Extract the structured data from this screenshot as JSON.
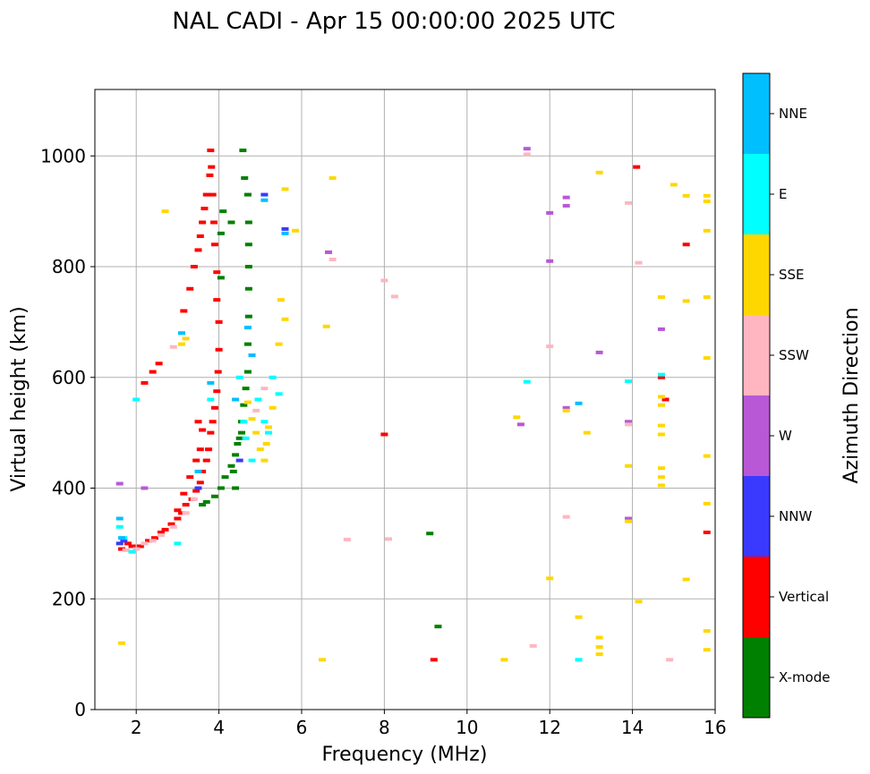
{
  "chart_data": {
    "type": "scatter",
    "title": "NAL CADI - Apr 15 00:00:00 2025 UTC",
    "xlabel": "Frequency (MHz)",
    "ylabel": "Virtual height (km)",
    "xlim": [
      1,
      16
    ],
    "ylim": [
      0,
      1120
    ],
    "xticks": [
      2,
      4,
      6,
      8,
      10,
      12,
      14,
      16
    ],
    "yticks": [
      0,
      200,
      400,
      600,
      800,
      1000
    ],
    "grid": true,
    "colorbar": {
      "label": "Azimuth Direction",
      "position": "right",
      "categories": [
        {
          "name": "X-mode",
          "color": "#008000"
        },
        {
          "name": "Vertical",
          "color": "#ff0000"
        },
        {
          "name": "NNW",
          "color": "#3a3aff"
        },
        {
          "name": "W",
          "color": "#b858d6"
        },
        {
          "name": "SSW",
          "color": "#ffb6c1"
        },
        {
          "name": "SSE",
          "color": "#ffd700"
        },
        {
          "name": "E",
          "color": "#00ffff"
        },
        {
          "name": "NNE",
          "color": "#00bfff"
        }
      ]
    },
    "series": [
      {
        "name": "Vertical",
        "points": [
          [
            1.65,
            290
          ],
          [
            1.8,
            300
          ],
          [
            1.9,
            295
          ],
          [
            2.1,
            295
          ],
          [
            2.3,
            305
          ],
          [
            2.45,
            310
          ],
          [
            2.6,
            320
          ],
          [
            2.7,
            325
          ],
          [
            2.85,
            335
          ],
          [
            3.0,
            345
          ],
          [
            3.1,
            355
          ],
          [
            3.2,
            370
          ],
          [
            3.35,
            380
          ],
          [
            3.45,
            395
          ],
          [
            3.55,
            410
          ],
          [
            3.6,
            430
          ],
          [
            3.7,
            450
          ],
          [
            3.75,
            470
          ],
          [
            3.8,
            500
          ],
          [
            3.85,
            520
          ],
          [
            3.9,
            545
          ],
          [
            3.95,
            575
          ],
          [
            3.98,
            610
          ],
          [
            4.0,
            650
          ],
          [
            4.0,
            700
          ],
          [
            3.95,
            740
          ],
          [
            3.95,
            790
          ],
          [
            3.9,
            840
          ],
          [
            3.88,
            880
          ],
          [
            3.85,
            930
          ],
          [
            3.82,
            980
          ],
          [
            3.8,
            1010
          ],
          [
            3.0,
            360
          ],
          [
            3.15,
            390
          ],
          [
            3.3,
            420
          ],
          [
            3.45,
            450
          ],
          [
            3.55,
            470
          ],
          [
            3.6,
            505
          ],
          [
            3.5,
            520
          ],
          [
            3.15,
            720
          ],
          [
            3.3,
            760
          ],
          [
            3.4,
            800
          ],
          [
            3.5,
            830
          ],
          [
            3.55,
            855
          ],
          [
            3.6,
            880
          ],
          [
            3.65,
            905
          ],
          [
            3.7,
            930
          ],
          [
            3.78,
            965
          ],
          [
            2.2,
            590
          ],
          [
            2.4,
            610
          ],
          [
            2.55,
            625
          ],
          [
            8.0,
            497
          ],
          [
            9.2,
            90
          ],
          [
            14.1,
            980
          ],
          [
            14.7,
            600
          ],
          [
            14.8,
            560
          ],
          [
            15.3,
            840
          ],
          [
            15.8,
            320
          ]
        ]
      },
      {
        "name": "X-mode",
        "points": [
          [
            3.6,
            370
          ],
          [
            3.7,
            375
          ],
          [
            3.9,
            385
          ],
          [
            4.05,
            400
          ],
          [
            4.15,
            420
          ],
          [
            4.3,
            440
          ],
          [
            4.4,
            460
          ],
          [
            4.5,
            490
          ],
          [
            4.55,
            520
          ],
          [
            4.6,
            550
          ],
          [
            4.65,
            580
          ],
          [
            4.7,
            610
          ],
          [
            4.7,
            660
          ],
          [
            4.72,
            710
          ],
          [
            4.72,
            760
          ],
          [
            4.72,
            800
          ],
          [
            4.72,
            840
          ],
          [
            4.72,
            880
          ],
          [
            4.7,
            930
          ],
          [
            4.62,
            960
          ],
          [
            4.58,
            1010
          ],
          [
            4.4,
            400
          ],
          [
            4.35,
            430
          ],
          [
            4.45,
            480
          ],
          [
            4.55,
            500
          ],
          [
            4.05,
            780
          ],
          [
            4.05,
            860
          ],
          [
            4.1,
            900
          ],
          [
            4.3,
            880
          ],
          [
            9.1,
            318
          ],
          [
            9.3,
            150
          ]
        ]
      },
      {
        "name": "NNW",
        "points": [
          [
            1.6,
            300
          ],
          [
            1.7,
            305
          ],
          [
            3.5,
            400
          ],
          [
            4.5,
            450
          ],
          [
            5.6,
            868
          ],
          [
            5.1,
            930
          ]
        ]
      },
      {
        "name": "W",
        "points": [
          [
            1.6,
            408
          ],
          [
            2.2,
            400
          ],
          [
            6.65,
            826
          ],
          [
            11.45,
            1013
          ],
          [
            11.3,
            515
          ],
          [
            12.0,
            897
          ],
          [
            12.0,
            810
          ],
          [
            12.4,
            925
          ],
          [
            12.4,
            910
          ],
          [
            12.4,
            545
          ],
          [
            13.2,
            645
          ],
          [
            13.9,
            520
          ],
          [
            14.7,
            687
          ],
          [
            13.9,
            345
          ]
        ]
      },
      {
        "name": "SSW",
        "points": [
          [
            1.75,
            288
          ],
          [
            1.9,
            285
          ],
          [
            2.0,
            290
          ],
          [
            2.2,
            300
          ],
          [
            2.4,
            305
          ],
          [
            2.6,
            315
          ],
          [
            2.9,
            330
          ],
          [
            3.2,
            355
          ],
          [
            3.4,
            380
          ],
          [
            2.9,
            655
          ],
          [
            5.1,
            580
          ],
          [
            4.9,
            540
          ],
          [
            6.75,
            813
          ],
          [
            7.1,
            307
          ],
          [
            8.0,
            775
          ],
          [
            8.25,
            746
          ],
          [
            8.1,
            308
          ],
          [
            11.45,
            1003
          ],
          [
            11.6,
            115
          ],
          [
            12.0,
            656
          ],
          [
            12.4,
            348
          ],
          [
            13.9,
            915
          ],
          [
            14.15,
            807
          ],
          [
            14.9,
            90
          ],
          [
            13.9,
            515
          ]
        ]
      },
      {
        "name": "SSE",
        "points": [
          [
            1.65,
            120
          ],
          [
            2.7,
            900
          ],
          [
            3.2,
            670
          ],
          [
            3.1,
            660
          ],
          [
            4.7,
            555
          ],
          [
            4.8,
            525
          ],
          [
            4.9,
            500
          ],
          [
            5.0,
            470
          ],
          [
            5.1,
            450
          ],
          [
            5.15,
            480
          ],
          [
            5.2,
            510
          ],
          [
            5.3,
            545
          ],
          [
            5.45,
            660
          ],
          [
            5.5,
            740
          ],
          [
            5.6,
            705
          ],
          [
            5.6,
            940
          ],
          [
            5.85,
            865
          ],
          [
            6.5,
            90
          ],
          [
            6.6,
            692
          ],
          [
            6.75,
            960
          ],
          [
            10.9,
            90
          ],
          [
            11.2,
            528
          ],
          [
            12.0,
            237
          ],
          [
            12.4,
            540
          ],
          [
            12.7,
            167
          ],
          [
            12.9,
            500
          ],
          [
            13.2,
            970
          ],
          [
            13.2,
            130
          ],
          [
            13.2,
            113
          ],
          [
            13.2,
            100
          ],
          [
            13.9,
            440
          ],
          [
            13.9,
            340
          ],
          [
            14.15,
            195
          ],
          [
            14.7,
            745
          ],
          [
            14.7,
            565
          ],
          [
            14.7,
            550
          ],
          [
            14.7,
            513
          ],
          [
            14.7,
            497
          ],
          [
            14.7,
            436
          ],
          [
            14.7,
            420
          ],
          [
            14.7,
            405
          ],
          [
            15.0,
            948
          ],
          [
            15.3,
            928
          ],
          [
            15.3,
            738
          ],
          [
            15.3,
            235
          ],
          [
            15.8,
            928
          ],
          [
            15.8,
            918
          ],
          [
            15.8,
            865
          ],
          [
            15.8,
            745
          ],
          [
            15.8,
            635
          ],
          [
            15.8,
            458
          ],
          [
            15.8,
            372
          ],
          [
            15.8,
            142
          ],
          [
            15.8,
            108
          ]
        ]
      },
      {
        "name": "E",
        "points": [
          [
            1.6,
            330
          ],
          [
            1.7,
            310
          ],
          [
            1.9,
            285
          ],
          [
            2.0,
            560
          ],
          [
            3.0,
            300
          ],
          [
            3.8,
            560
          ],
          [
            4.5,
            600
          ],
          [
            4.6,
            520
          ],
          [
            4.8,
            450
          ],
          [
            4.95,
            560
          ],
          [
            5.1,
            520
          ],
          [
            5.3,
            600
          ],
          [
            5.45,
            570
          ],
          [
            5.2,
            500
          ],
          [
            4.65,
            490
          ],
          [
            11.45,
            592
          ],
          [
            12.7,
            90
          ],
          [
            13.9,
            593
          ],
          [
            14.7,
            605
          ]
        ]
      },
      {
        "name": "NNE",
        "points": [
          [
            1.6,
            345
          ],
          [
            1.65,
            310
          ],
          [
            3.1,
            680
          ],
          [
            3.5,
            430
          ],
          [
            3.8,
            590
          ],
          [
            4.4,
            560
          ],
          [
            4.7,
            690
          ],
          [
            4.8,
            640
          ],
          [
            5.1,
            920
          ],
          [
            5.6,
            860
          ],
          [
            12.7,
            553
          ]
        ]
      }
    ]
  }
}
